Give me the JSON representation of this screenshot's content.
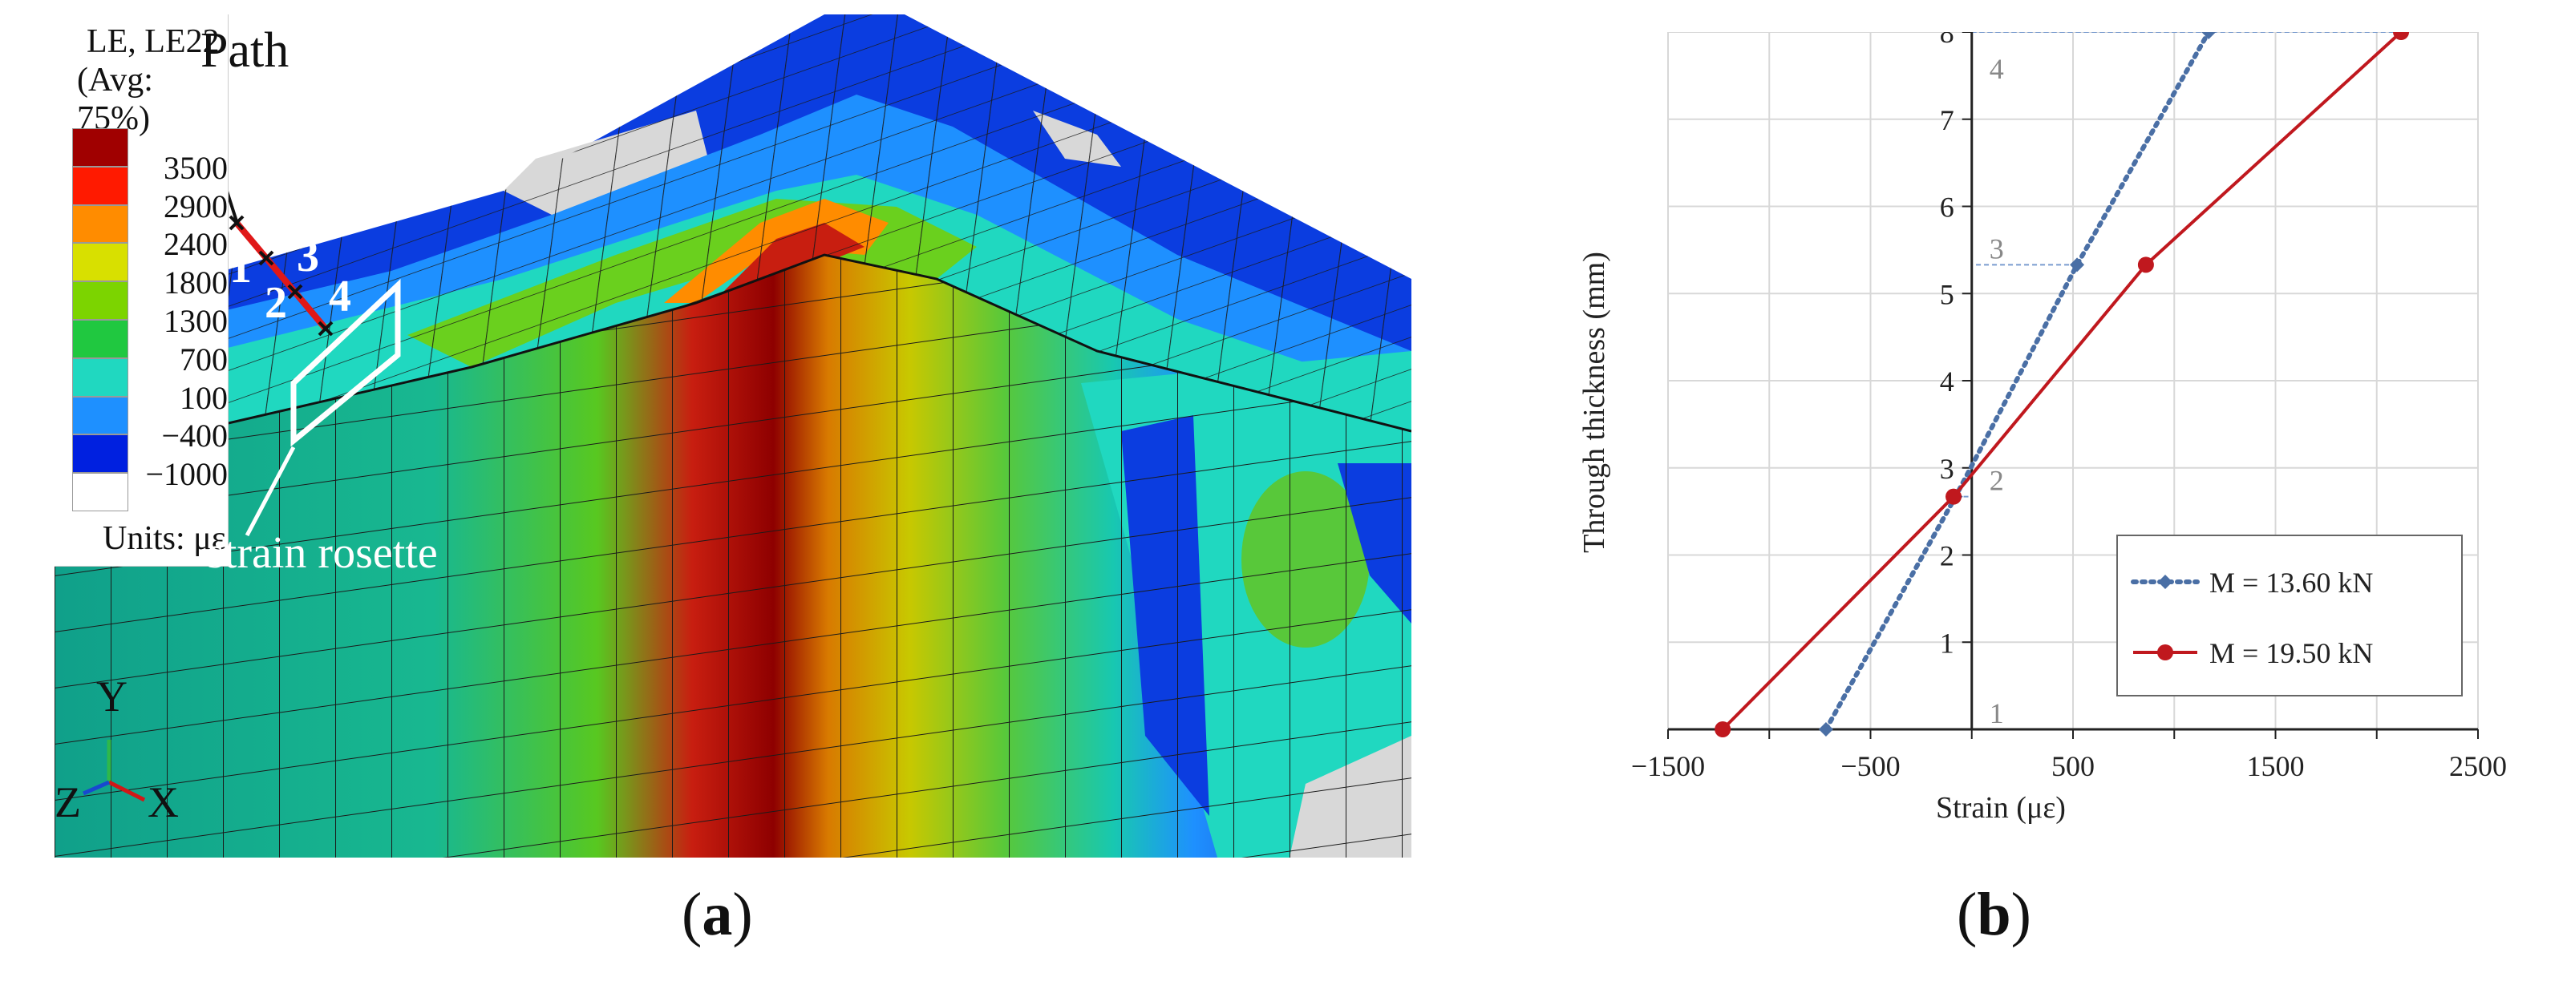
{
  "panel_a": {
    "caption_letter": "a",
    "legend": {
      "title_line1": "LE, LE22",
      "title_line2": "(Avg: 75%)",
      "ticks": [
        "3500",
        "2900",
        "2400",
        "1800",
        "1300",
        "700",
        "100",
        "−400",
        "−1000"
      ],
      "colors": [
        "#a00000",
        "#ff1a00",
        "#ff8c00",
        "#d8e000",
        "#7cd400",
        "#20c840",
        "#20d8c0",
        "#1e90ff",
        "#0020e0",
        "#ffffff"
      ],
      "units": "Units: με"
    },
    "annotations": {
      "path_label": "Path",
      "points": [
        "1",
        "2",
        "3",
        "4"
      ],
      "rosette_label": "strain rosette"
    },
    "axes_triad": {
      "y": "Y",
      "z": "Z",
      "x": "X"
    }
  },
  "panel_b": {
    "caption_letter": "b",
    "chart_data": {
      "type": "line",
      "xlabel": "Strain (με)",
      "ylabel": "Through thickness (mm)",
      "xlim": [
        -1500,
        2500
      ],
      "ylim": [
        0,
        8
      ],
      "x_ticks": [
        "−1500",
        "−500",
        "500",
        "1500",
        "2500"
      ],
      "x_tick_values": [
        -1500,
        -500,
        500,
        1500,
        2500
      ],
      "y_ticks": [
        "1",
        "2",
        "3",
        "4",
        "5",
        "6",
        "7",
        "8"
      ],
      "y_tick_values": [
        1,
        2,
        3,
        4,
        5,
        6,
        7,
        8
      ],
      "grid": true,
      "legend_position": "bottom-right",
      "series": [
        {
          "name": "M = 13.60 kN",
          "color": "#4a6fa5",
          "style": "dotted",
          "marker": "diamond",
          "points": [
            [
              -720,
              0
            ],
            [
              -80,
              2.67
            ],
            [
              520,
              5.33
            ],
            [
              1170,
              8
            ]
          ]
        },
        {
          "name": "M = 19.50 kN",
          "color": "#c0181e",
          "style": "solid",
          "marker": "circle",
          "points": [
            [
              -1230,
              0
            ],
            [
              -90,
              2.67
            ],
            [
              860,
              5.33
            ],
            [
              2120,
              8
            ]
          ]
        }
      ],
      "point_labels": [
        "1",
        "2",
        "3",
        "4"
      ],
      "point_label_y": [
        0,
        2.67,
        5.33,
        8
      ]
    }
  }
}
